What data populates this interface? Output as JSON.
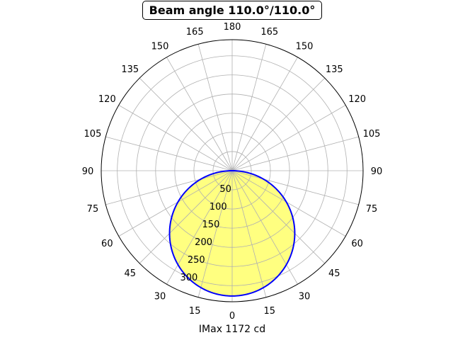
{
  "chart_data": {
    "type": "polar",
    "title": "Beam angle 110.0°/110.0°",
    "xlabel": "IMax 1172 cd",
    "angle_ticks": [
      0,
      15,
      30,
      45,
      60,
      75,
      90,
      105,
      120,
      135,
      150,
      165,
      180
    ],
    "angle_tick_labels": [
      "0",
      "15",
      "30",
      "45",
      "60",
      "75",
      "90",
      "105",
      "120",
      "135",
      "150",
      "165",
      "180"
    ],
    "radial_ticks": [
      50,
      100,
      150,
      200,
      250,
      300
    ],
    "radial_tick_labels": [
      "50",
      "100",
      "150",
      "200",
      "250",
      "300"
    ],
    "rlim": [
      0,
      342
    ],
    "grid": true,
    "zero_direction": "bottom",
    "symmetric": true,
    "series": [
      {
        "distribution": "cosine",
        "peak_value": 327,
        "angles_deg": [
          0,
          15,
          30,
          45,
          60,
          75,
          90
        ],
        "values": [
          327,
          316,
          283,
          231,
          164,
          85,
          0
        ]
      }
    ],
    "colors": {
      "line": "#0000ff",
      "fill": "#ffff80",
      "grid": "#b0b0b0"
    }
  }
}
